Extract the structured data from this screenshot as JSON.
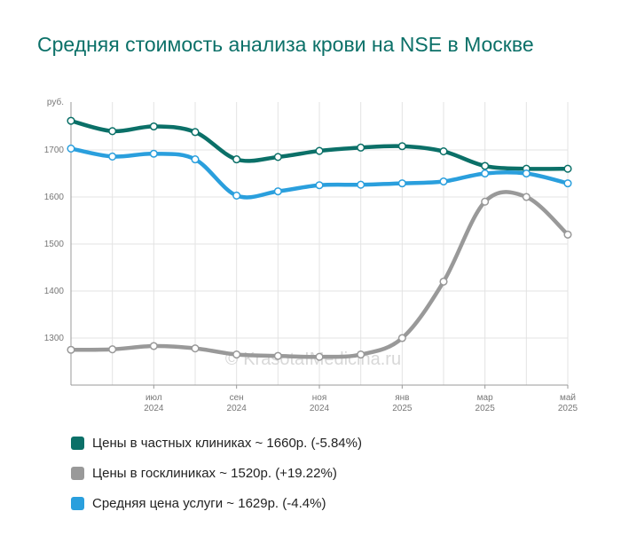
{
  "title": "Средняя стоимость анализа крови на NSE в Москве",
  "watermark": "© KrasotaIMedicina.ru",
  "chart_data": {
    "type": "line",
    "y_unit": "руб.",
    "ylim": [
      1200,
      1700
    ],
    "y_ticks": [
      1300,
      1400,
      1500,
      1600,
      1700
    ],
    "x_ticks": [
      {
        "line1": "июл",
        "line2": "2024"
      },
      {
        "line1": "сен",
        "line2": "2024"
      },
      {
        "line1": "ноя",
        "line2": "2024"
      },
      {
        "line1": "янв",
        "line2": "2025"
      },
      {
        "line1": "мар",
        "line2": "2025"
      },
      {
        "line1": "май",
        "line2": "2025"
      }
    ],
    "grid": true,
    "legend_position": "bottom",
    "x": [
      "2024-05",
      "2024-06",
      "2024-07",
      "2024-08",
      "2024-09",
      "2024-10",
      "2024-11",
      "2024-12",
      "2025-01",
      "2025-02",
      "2025-03",
      "2025-04",
      "2025-05"
    ],
    "series": [
      {
        "name": "Цены в частных клиниках ~ 1660р. (-5.84%)",
        "color": "#0b7068",
        "values": [
          1762,
          1740,
          1750,
          1738,
          1680,
          1685,
          1698,
          1705,
          1708,
          1697,
          1666,
          1660,
          1660
        ]
      },
      {
        "name": "Цены в госклиниках ~ 1520р. (+19.22%)",
        "color": "#999999",
        "values": [
          1275,
          1276,
          1283,
          1278,
          1265,
          1262,
          1260,
          1265,
          1300,
          1420,
          1590,
          1600,
          1520
        ]
      },
      {
        "name": "Средняя цена услуги ~ 1629р. (-4.4%)",
        "color": "#2a9fdd",
        "values": [
          1703,
          1686,
          1692,
          1680,
          1603,
          1612,
          1625,
          1626,
          1629,
          1633,
          1650,
          1650,
          1629
        ]
      }
    ]
  }
}
